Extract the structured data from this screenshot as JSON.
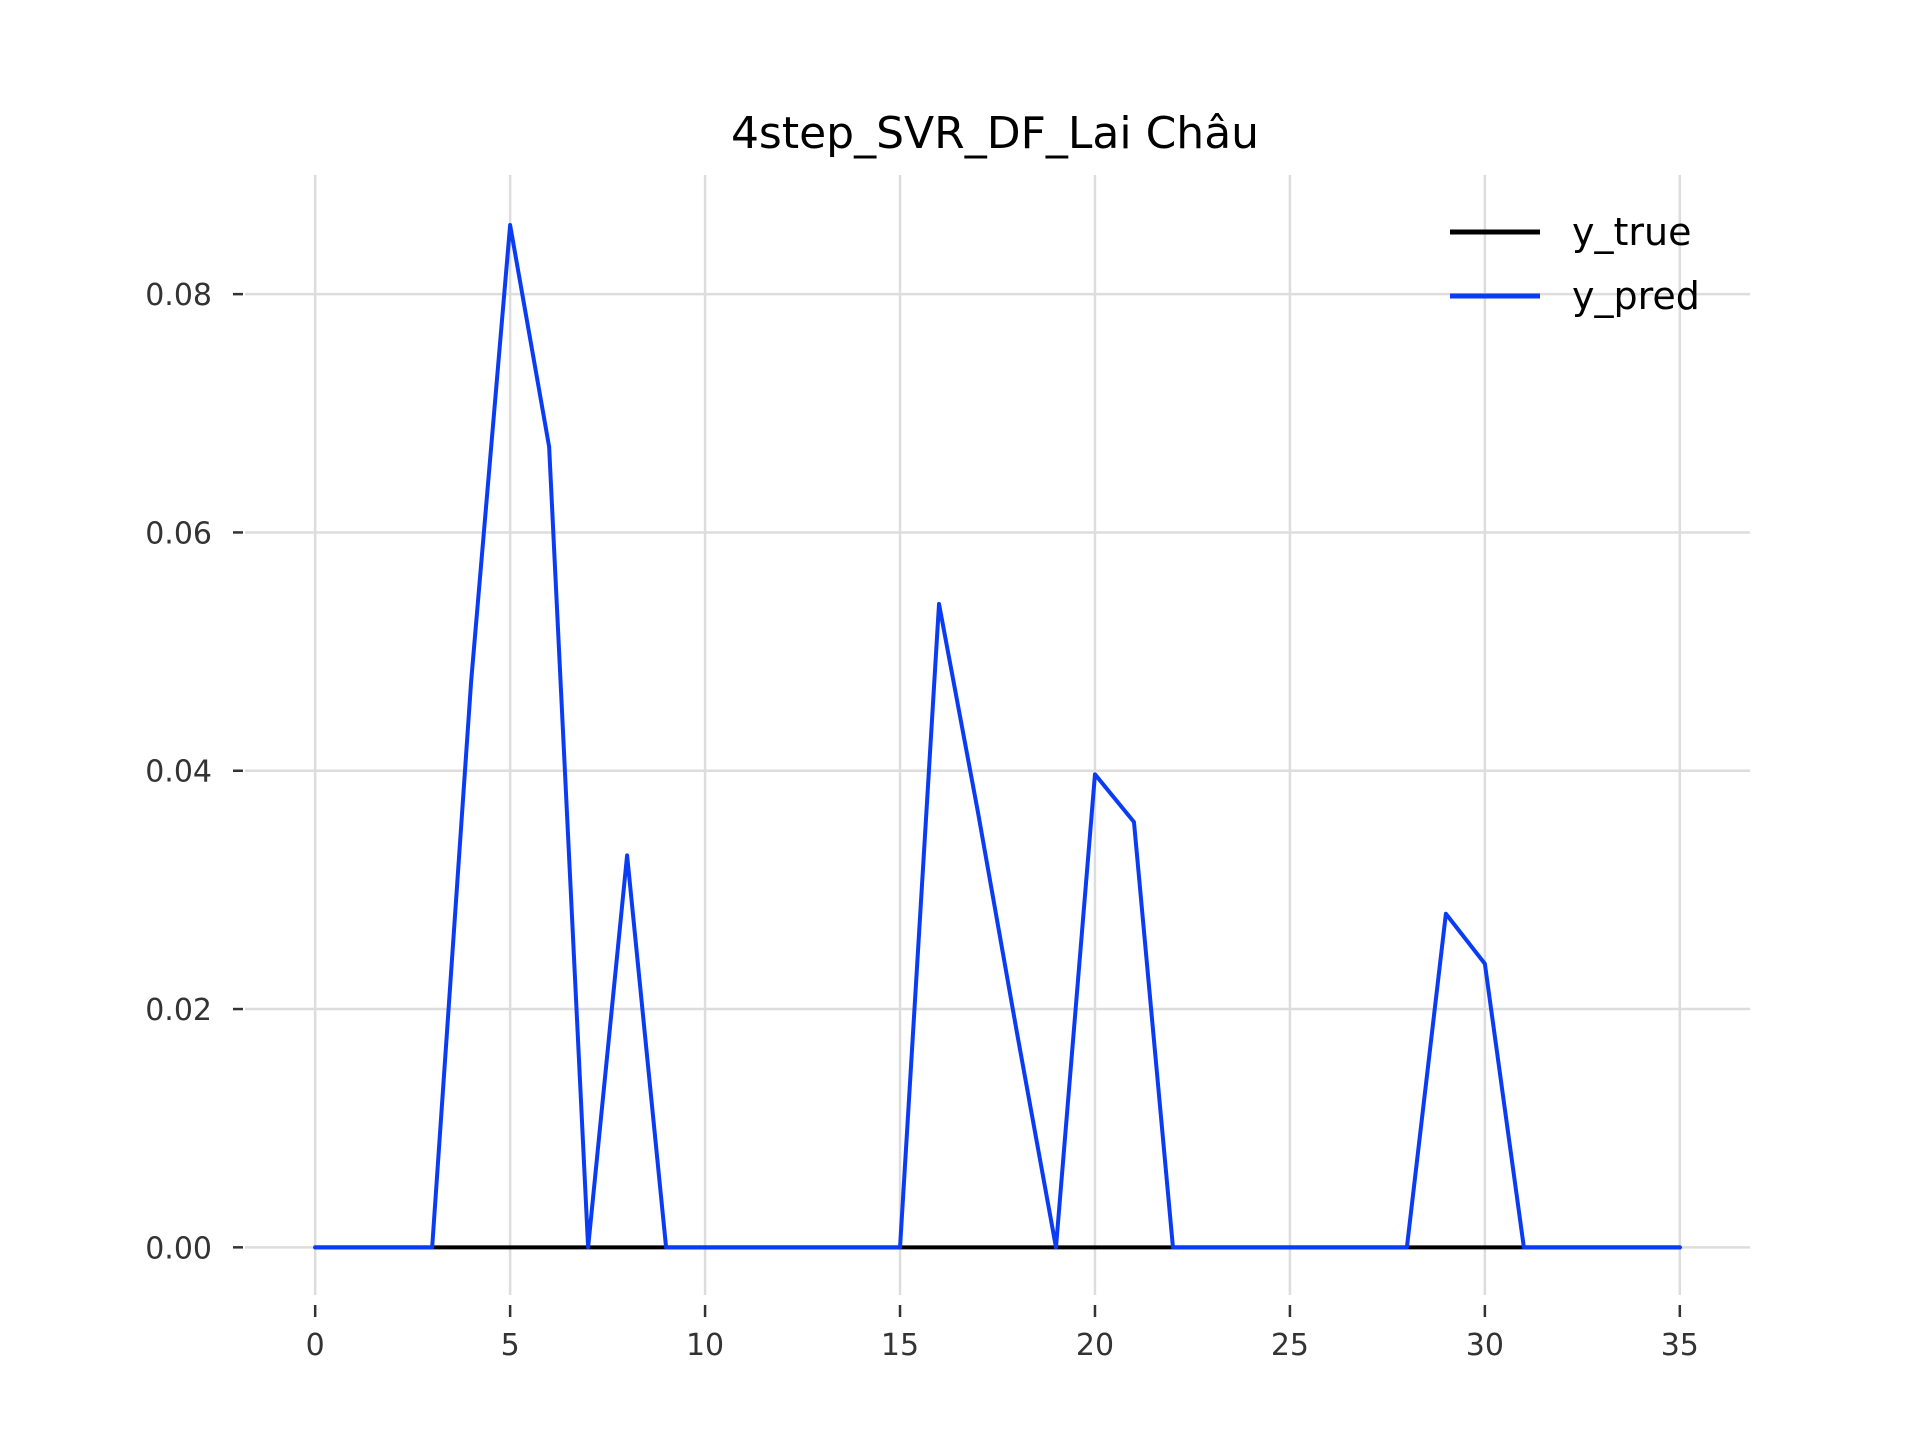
{
  "chart_data": {
    "type": "line",
    "title": "4step_SVR_DF_Lai Châu",
    "xlabel": "",
    "ylabel": "",
    "x": [
      0,
      1,
      2,
      3,
      4,
      5,
      6,
      7,
      8,
      9,
      10,
      11,
      12,
      13,
      14,
      15,
      16,
      17,
      18,
      19,
      20,
      21,
      22,
      23,
      24,
      25,
      26,
      27,
      28,
      29,
      30,
      31,
      32,
      33,
      34,
      35
    ],
    "xlim": [
      -1.8,
      36.8
    ],
    "ylim": [
      -0.004,
      0.09
    ],
    "xticks": [
      0,
      5,
      10,
      15,
      20,
      25,
      30,
      35
    ],
    "xtick_labels": [
      "0",
      "5",
      "10",
      "15",
      "20",
      "25",
      "30",
      "35"
    ],
    "yticks": [
      0.0,
      0.02,
      0.04,
      0.06,
      0.08
    ],
    "ytick_labels": [
      "0.00",
      "0.02",
      "0.04",
      "0.06",
      "0.08"
    ],
    "grid": true,
    "legend_position": "top-right",
    "series": [
      {
        "name": "y_true",
        "color": "#000000",
        "values": [
          0,
          0,
          0,
          0,
          0,
          0,
          0,
          0,
          0,
          0,
          0,
          0,
          0,
          0,
          0,
          0,
          0,
          0,
          0,
          0,
          0,
          0,
          0,
          0,
          0,
          0,
          0,
          0,
          0,
          0,
          0,
          0,
          0,
          0,
          0,
          0
        ]
      },
      {
        "name": "y_pred",
        "color": "#0a3cf5",
        "values": [
          0,
          0,
          0,
          0,
          0.0475,
          0.0858,
          0.0672,
          0,
          0.0329,
          0,
          0,
          0,
          0,
          0,
          0,
          0,
          0.054,
          0.0365,
          0.018,
          0,
          0.0397,
          0.0357,
          0,
          0,
          0,
          0,
          0,
          0,
          0,
          0.028,
          0.0238,
          0,
          0,
          0,
          0,
          0
        ]
      }
    ]
  }
}
